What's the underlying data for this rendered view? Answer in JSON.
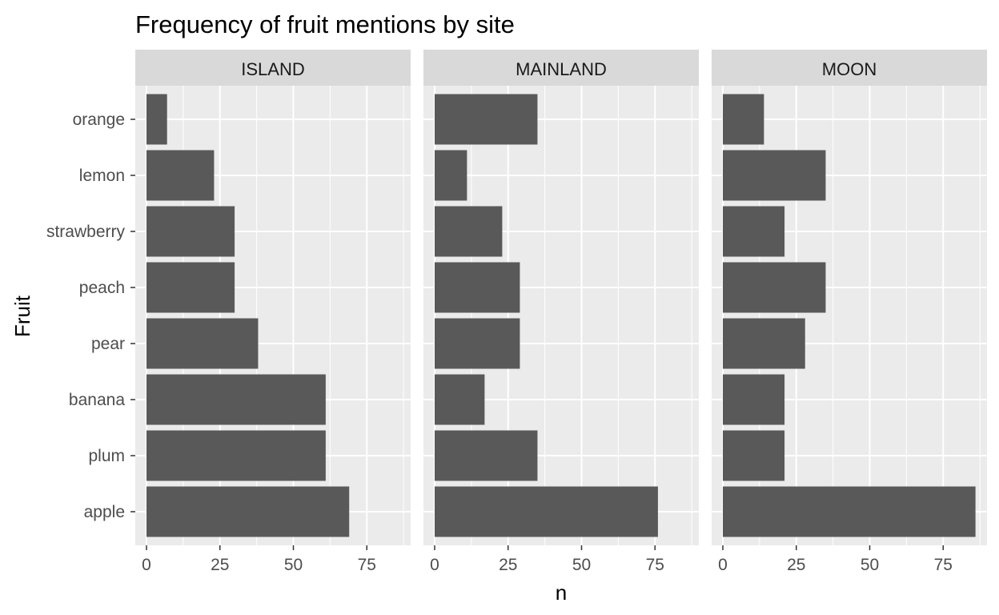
{
  "chart_data": {
    "type": "bar",
    "orientation": "horizontal",
    "title": "Frequency of fruit mentions by site",
    "xlabel": "n",
    "ylabel": "Fruit",
    "categories": [
      "apple",
      "plum",
      "banana",
      "pear",
      "peach",
      "strawberry",
      "lemon",
      "orange"
    ],
    "x_ticks": [
      0,
      25,
      50,
      75
    ],
    "xlim": [
      0,
      90
    ],
    "grid": true,
    "legend": "none",
    "bar_color": "#595959",
    "panel_background": "#ebebeb",
    "strip_background": "#d9d9d9",
    "facets": [
      {
        "label": "ISLAND",
        "values": [
          69,
          61,
          61,
          38,
          30,
          30,
          23,
          7
        ]
      },
      {
        "label": "MAINLAND",
        "values": [
          76,
          35,
          17,
          29,
          29,
          23,
          11,
          35
        ]
      },
      {
        "label": "MOON",
        "values": [
          86,
          21,
          21,
          28,
          35,
          21,
          35,
          14
        ]
      }
    ]
  }
}
